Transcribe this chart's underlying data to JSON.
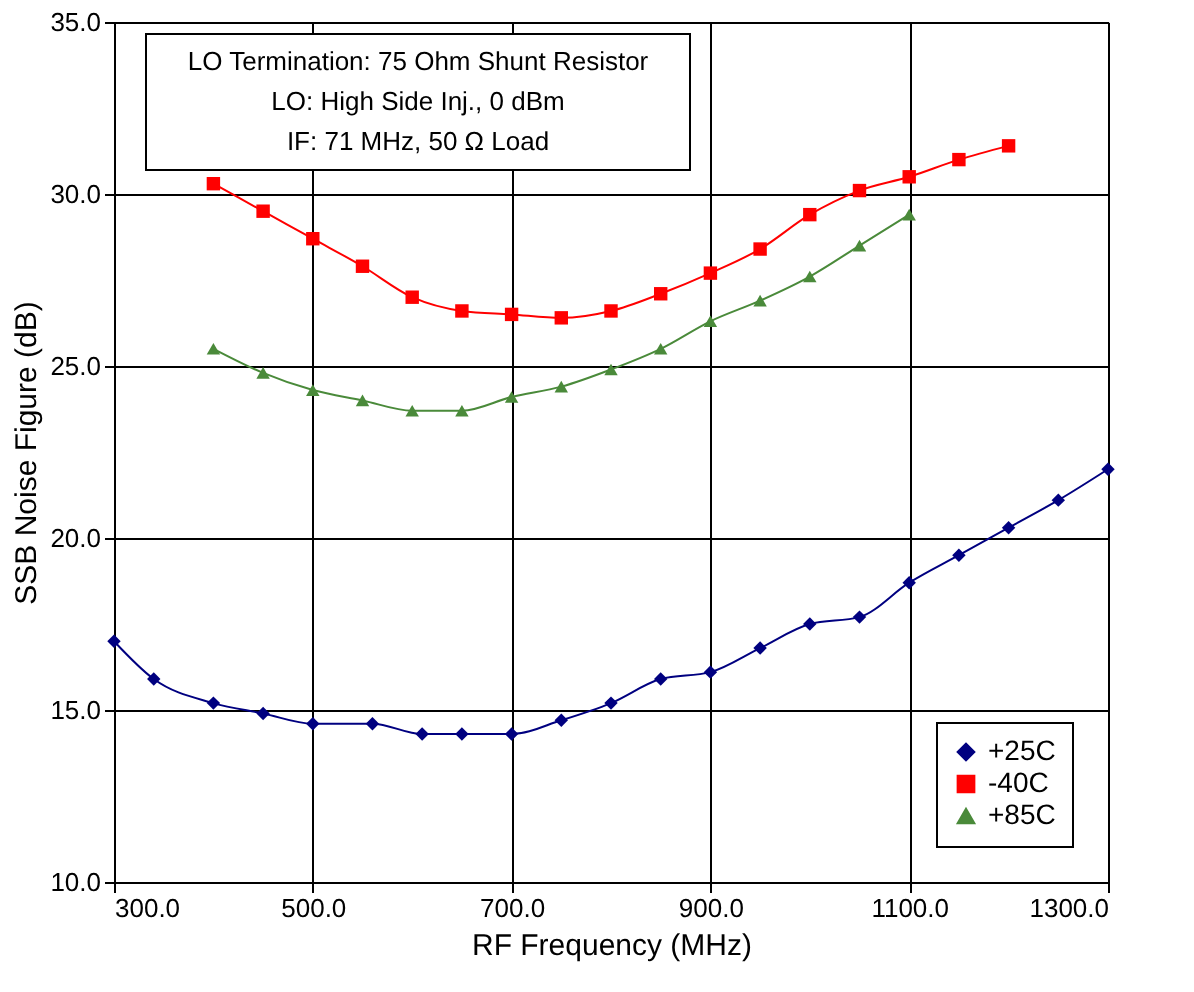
{
  "chart_data": {
    "type": "line",
    "xlabel": "RF Frequency (MHz)",
    "ylabel": "SSB Noise Figure (dB)",
    "annotations": [
      "LO Termination: 75 Ohm Shunt Resistor",
      "LO: High Side Inj., 0 dBm",
      "IF: 71 MHz, 50 Ω Load"
    ],
    "xlim": [
      300,
      1300
    ],
    "xticks": [
      {
        "value": 300,
        "label": "300.0"
      },
      {
        "value": 500,
        "label": "500.0"
      },
      {
        "value": 700,
        "label": "700.0"
      },
      {
        "value": 900,
        "label": "900.0"
      },
      {
        "value": 1100,
        "label": "1100.0"
      },
      {
        "value": 1300,
        "label": "1300.0"
      }
    ],
    "ylim": [
      10,
      35
    ],
    "yticks": [
      {
        "value": 10,
        "label": "10.0"
      },
      {
        "value": 15,
        "label": "15.0"
      },
      {
        "value": 20,
        "label": "20.0"
      },
      {
        "value": 25,
        "label": "25.0"
      },
      {
        "value": 30,
        "label": "30.0"
      },
      {
        "value": 35,
        "label": "35.0"
      }
    ],
    "grid": true,
    "legend": "bottom right",
    "series": [
      {
        "name": "+25C",
        "color": "#000080",
        "marker": "diamond",
        "x": [
          300,
          340,
          400,
          450,
          500,
          560,
          610,
          650,
          700,
          750,
          800,
          850,
          900,
          950,
          1000,
          1050,
          1100,
          1150,
          1200,
          1250,
          1300
        ],
        "values": [
          17.0,
          15.9,
          15.2,
          14.9,
          14.6,
          14.6,
          14.3,
          14.3,
          14.3,
          14.7,
          15.2,
          15.9,
          16.1,
          16.8,
          17.5,
          17.7,
          18.7,
          19.5,
          20.3,
          21.1,
          22.0
        ]
      },
      {
        "name": "-40C",
        "color": "#ff0000",
        "marker": "square",
        "x": [
          400,
          450,
          500,
          550,
          600,
          650,
          700,
          750,
          800,
          850,
          900,
          950,
          1000,
          1050,
          1100,
          1150,
          1200
        ],
        "values": [
          30.3,
          29.5,
          28.7,
          27.9,
          27.0,
          26.6,
          26.5,
          26.4,
          26.6,
          27.1,
          27.7,
          28.4,
          29.4,
          30.1,
          30.5,
          31.0,
          31.4
        ]
      },
      {
        "name": "+85C",
        "color": "#4a8a3a",
        "marker": "triangle",
        "x": [
          400,
          450,
          500,
          550,
          600,
          650,
          700,
          750,
          800,
          850,
          900,
          950,
          1000,
          1050,
          1100
        ],
        "values": [
          25.5,
          24.8,
          24.3,
          24.0,
          23.7,
          23.7,
          24.1,
          24.4,
          24.9,
          25.5,
          26.3,
          26.9,
          27.6,
          28.5,
          29.4
        ]
      }
    ]
  }
}
